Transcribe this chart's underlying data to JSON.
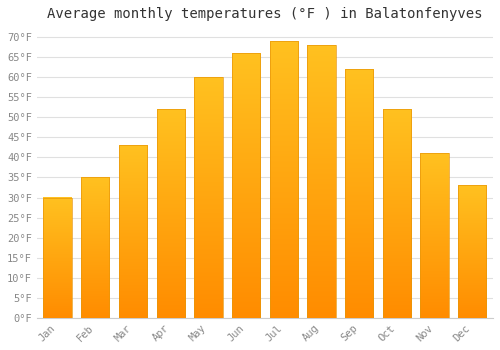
{
  "title": "Average monthly temperatures (°F ) in Balatonfenyves",
  "months": [
    "Jan",
    "Feb",
    "Mar",
    "Apr",
    "May",
    "Jun",
    "Jul",
    "Aug",
    "Sep",
    "Oct",
    "Nov",
    "Dec"
  ],
  "values": [
    30,
    35,
    43,
    52,
    60,
    66,
    69,
    68,
    62,
    52,
    41,
    33
  ],
  "bar_color_top": "#FFC120",
  "bar_color_bottom": "#FF8C00",
  "bar_edge_color": "#E8960A",
  "background_color": "#FFFFFF",
  "grid_color": "#E0E0E0",
  "ylim": [
    0,
    72
  ],
  "yticks": [
    0,
    5,
    10,
    15,
    20,
    25,
    30,
    35,
    40,
    45,
    50,
    55,
    60,
    65,
    70
  ],
  "title_fontsize": 10,
  "tick_fontsize": 7.5,
  "tick_color": "#888888",
  "title_color": "#333333"
}
